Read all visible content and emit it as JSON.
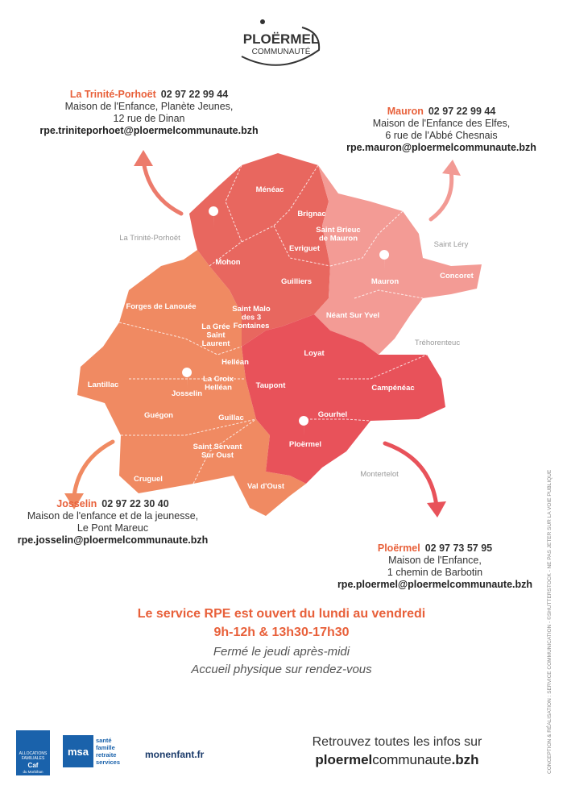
{
  "header": {
    "logo_line1": "PLOËRMEL",
    "logo_line2": "COMMUNAUTÉ"
  },
  "offices": [
    {
      "name": "La Trinité-Porhoët",
      "phone": "02 97 22 99 44",
      "address": [
        "Maison de l'Enfance, Planète Jeunes,",
        "12 rue de Dinan"
      ],
      "email": "rpe.triniteporhoet@ploermelcommunaute.bzh"
    },
    {
      "name": "Mauron",
      "phone": "02 97 22 99 44",
      "address": [
        "Maison de l'Enfance des Elfes,",
        "6 rue de l'Abbé Chesnais"
      ],
      "email": "rpe.mauron@ploermelcommunaute.bzh"
    },
    {
      "name": "Josselin",
      "phone": "02 97 22 30 40",
      "address": [
        "Maison de l'enfance et de la jeunesse,",
        "Le Pont Mareuc"
      ],
      "email": "rpe.josselin@ploermelcommunaute.bzh"
    },
    {
      "name": "Ploërmel",
      "phone": "02 97 73 57 95",
      "address": [
        "Maison de l'Enfance,",
        "1 chemin de Barbotin"
      ],
      "email": "rpe.ploermel@ploermelcommunaute.bzh"
    }
  ],
  "map": {
    "communes": [
      {
        "lines": [
          "Ménéac"
        ]
      },
      {
        "lines": [
          "Brignac"
        ]
      },
      {
        "lines": [
          "Saint Brieuc",
          "de Mauron"
        ]
      },
      {
        "lines": [
          "Evriguet"
        ]
      },
      {
        "lines": [
          "Mohon"
        ]
      },
      {
        "lines": [
          "Guilliers"
        ]
      },
      {
        "lines": [
          "Mauron"
        ]
      },
      {
        "lines": [
          "Concoret"
        ]
      },
      {
        "lines": [
          "Forges de Lanouée"
        ]
      },
      {
        "lines": [
          "Saint Malo",
          "des 3",
          "Fontaines"
        ]
      },
      {
        "lines": [
          "Néant Sur Yvel"
        ]
      },
      {
        "lines": [
          "La Grée",
          "Saint",
          "Laurent"
        ]
      },
      {
        "lines": [
          "Loyat"
        ]
      },
      {
        "lines": [
          "Helléan"
        ]
      },
      {
        "lines": [
          "La Croix",
          "Helléan"
        ]
      },
      {
        "lines": [
          "Lantillac"
        ]
      },
      {
        "lines": [
          "Josselin"
        ]
      },
      {
        "lines": [
          "Taupont"
        ]
      },
      {
        "lines": [
          "Campénéac"
        ]
      },
      {
        "lines": [
          "Guégon"
        ]
      },
      {
        "lines": [
          "Guillac"
        ]
      },
      {
        "lines": [
          "Gourhel"
        ]
      },
      {
        "lines": [
          "Ploërmel"
        ]
      },
      {
        "lines": [
          "Saint Servant",
          "Sur Oust"
        ]
      },
      {
        "lines": [
          "Cruguel"
        ]
      },
      {
        "lines": [
          "Val d'Oust"
        ]
      }
    ],
    "outside": [
      "La Trinité-Porhoët",
      "Saint Léry",
      "Tréhorenteuc",
      "Montertelot"
    ]
  },
  "schedule": {
    "line1": "Le service RPE est ouvert du lundi au vendredi",
    "line2": "9h-12h & 13h30-17h30",
    "line3": "Fermé le jeudi après-midi",
    "line4": "Accueil physique sur rendez-vous"
  },
  "footer": {
    "caf": [
      "ALLOCATIONS",
      "FAMILIALES",
      "Caf",
      "du Morbihan"
    ],
    "msa_logo": "msa",
    "msa": [
      "santé",
      "famille",
      "retraite",
      "services"
    ],
    "monenfant": "monenfant.fr",
    "info": "Retrouvez toutes les infos sur",
    "url": [
      "ploermel",
      "communaute",
      ".bzh"
    ]
  },
  "credit": "CONCEPTION & RÉALISATION : SERVICE COMMUNICATION - ©SHUTTERSTOCK - NE PAS JETER SUR LA VOIE PUBLIQUE"
}
